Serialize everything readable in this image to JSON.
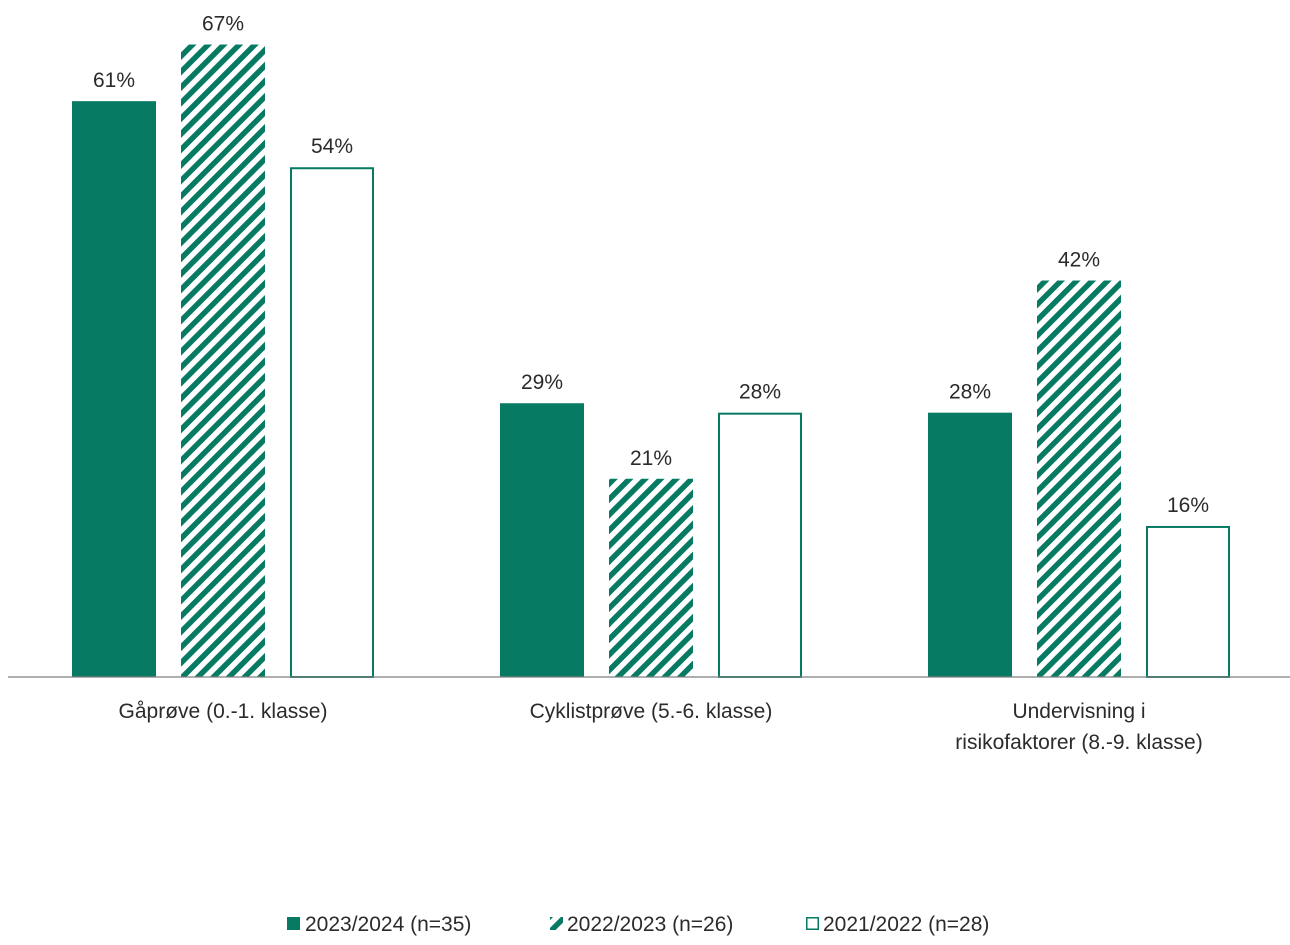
{
  "chart_data": {
    "type": "bar",
    "title": "",
    "xlabel": "",
    "ylabel": "",
    "ylim": [
      0,
      70
    ],
    "grid": false,
    "legend_position": "bottom",
    "categories": [
      [
        "Gåprøve (0.-1. klasse)"
      ],
      [
        "Cyklistprøve (5.-6. klasse)"
      ],
      [
        "Undervisning i",
        "risikofaktorer (8.-9. klasse)"
      ]
    ],
    "series": [
      {
        "name": "2023/2024 (n=35)",
        "style": "solid",
        "color": "#067a62",
        "values": [
          61,
          29,
          28
        ],
        "labels": [
          "61%",
          "29%",
          "28%"
        ]
      },
      {
        "name": "2022/2023 (n=26)",
        "style": "hatched",
        "color": "#067a62",
        "values": [
          67,
          21,
          42
        ],
        "labels": [
          "67%",
          "21%",
          "42%"
        ]
      },
      {
        "name": "2021/2022 (n=28)",
        "style": "outline",
        "color": "#067a62",
        "values": [
          54,
          28,
          16
        ],
        "labels": [
          "54%",
          "28%",
          "16%"
        ]
      }
    ]
  }
}
